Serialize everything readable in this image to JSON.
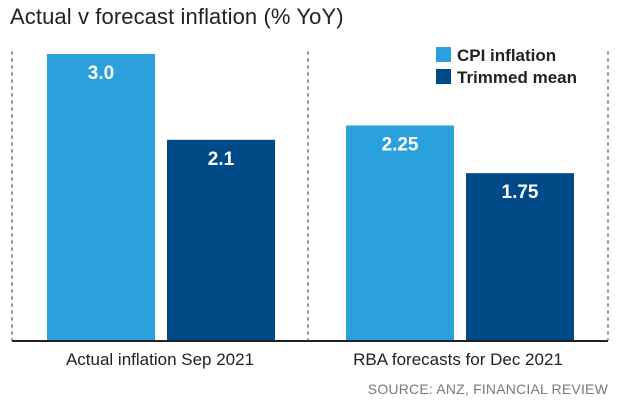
{
  "title": "Actual v forecast inflation (% YoY)",
  "source": "SOURCE: ANZ, FINANCIAL REVIEW",
  "colors": {
    "cpi": "#2aa0dc",
    "trimmed": "#004a88",
    "axis": "#222222",
    "grid": "#9a9a9a"
  },
  "chart_data": {
    "type": "bar",
    "title": "Actual v forecast inflation (% YoY)",
    "categories": [
      "Actual inflation Sep 2021",
      "RBA forecasts for Dec 2021"
    ],
    "series": [
      {
        "name": "CPI inflation",
        "values": [
          3.0,
          2.25
        ],
        "labels": [
          "3.0",
          "2.25"
        ],
        "color": "#2aa0dc"
      },
      {
        "name": "Trimmed mean",
        "values": [
          2.1,
          1.75
        ],
        "labels": [
          "2.1",
          "1.75"
        ],
        "color": "#004a88"
      }
    ],
    "ylim": [
      0,
      3.2
    ],
    "grid": false,
    "legend_position": "top-right",
    "xlabel": "",
    "ylabel": ""
  }
}
